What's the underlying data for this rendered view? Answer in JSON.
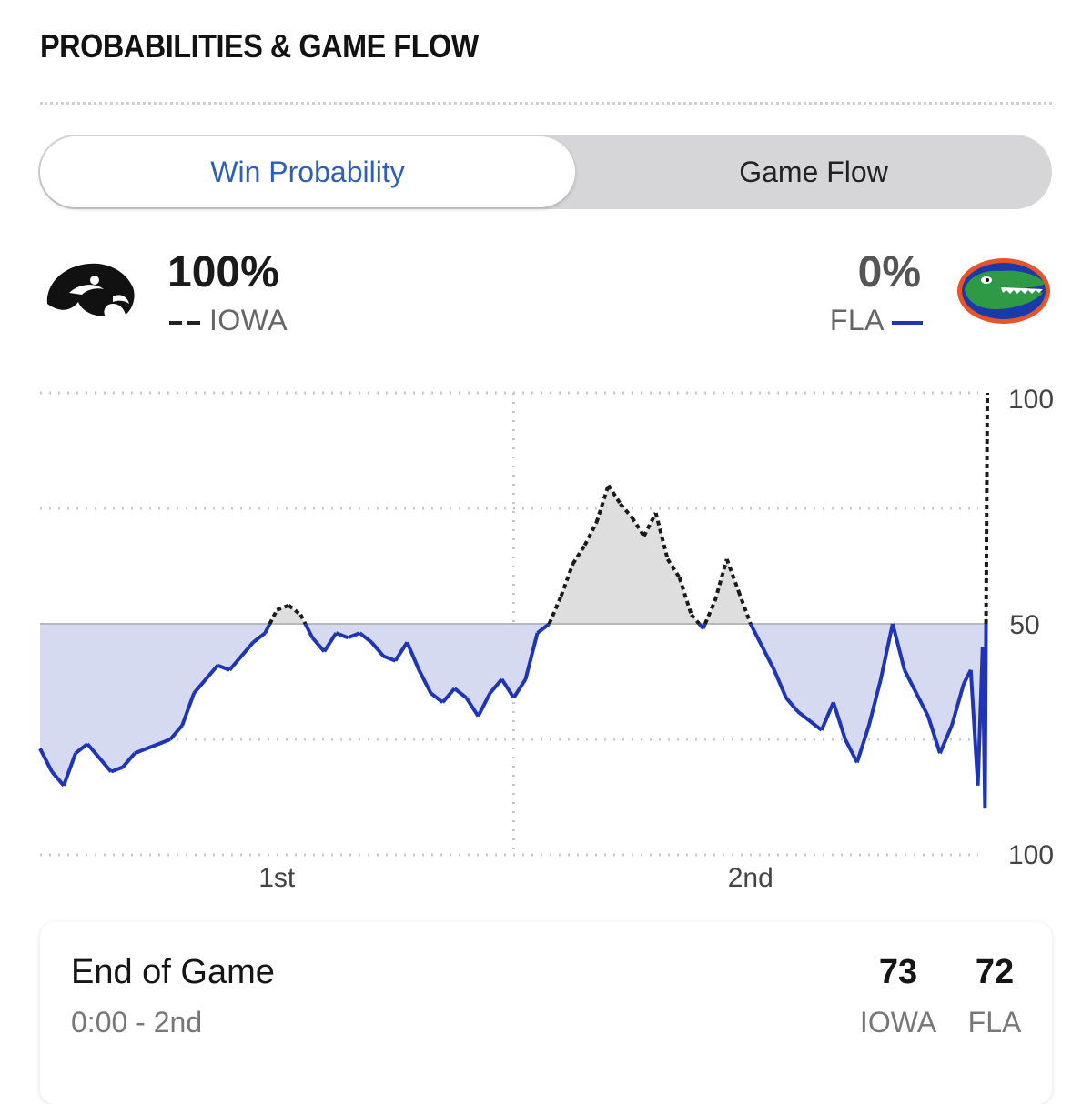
{
  "section": {
    "title": "PROBABILITIES & GAME FLOW"
  },
  "toggle": {
    "active_label": "Win Probability",
    "inactive_label": "Game Flow"
  },
  "teams": {
    "left": {
      "abbr": "IOWA",
      "win_pct": "100%",
      "line_style": "dashed",
      "color": "#222222"
    },
    "right": {
      "abbr": "FLA",
      "win_pct": "0%",
      "line_style": "solid",
      "color": "#1f35b3"
    }
  },
  "chart_data": {
    "type": "line",
    "title": "Win Probability",
    "x_tick_labels": [
      "1st",
      "2nd"
    ],
    "y_tick_labels": {
      "top": "100",
      "middle": "50",
      "bottom": "100"
    },
    "x_range": [
      0,
      40
    ],
    "y_range": [
      0,
      100
    ],
    "y_meaning": "IOWA win probability (%)",
    "series": [
      {
        "name": "IOWA win probability",
        "x": [
          0,
          0.5,
          1,
          1.5,
          2,
          2.5,
          3,
          3.5,
          4,
          4.5,
          5,
          5.5,
          6,
          6.5,
          7,
          7.5,
          8,
          8.5,
          9,
          9.5,
          10,
          10.5,
          11,
          11.5,
          12,
          12.5,
          13,
          13.5,
          14,
          14.5,
          15,
          15.5,
          16,
          16.5,
          17,
          17.5,
          18,
          18.5,
          19,
          19.5,
          20,
          20.5,
          21,
          21.5,
          22,
          22.5,
          23,
          23.5,
          24,
          24.5,
          25,
          25.5,
          26,
          26.5,
          27,
          27.5,
          28,
          28.5,
          29,
          29.5,
          30,
          30.5,
          31,
          31.5,
          32,
          32.5,
          33,
          33.5,
          34,
          34.5,
          35,
          35.5,
          36,
          36.5,
          37,
          37.5,
          38,
          38.5,
          39,
          39.3,
          39.6,
          39.8,
          39.9,
          40
        ],
        "y": [
          23,
          18,
          15,
          22,
          24,
          21,
          18,
          19,
          22,
          23,
          24,
          25,
          28,
          35,
          38,
          41,
          40,
          43,
          46,
          48,
          53,
          54,
          52,
          47,
          44,
          48,
          47,
          48,
          46,
          43,
          42,
          46,
          40,
          35,
          33,
          36,
          34,
          30,
          35,
          38,
          34,
          38,
          48,
          50,
          56,
          63,
          67,
          72,
          80,
          76,
          73,
          69,
          74,
          64,
          60,
          52,
          49,
          55,
          64,
          57,
          50,
          45,
          40,
          34,
          31,
          29,
          27,
          33,
          25,
          20,
          28,
          38,
          50,
          40,
          35,
          30,
          22,
          28,
          37,
          40,
          15,
          45,
          10,
          100
        ]
      }
    ],
    "reference_line_y": 50,
    "period_divider_x": 20
  },
  "footer": {
    "status": "End of Game",
    "time": "0:00 - 2nd",
    "iowa_score": "73",
    "fla_score": "72",
    "iowa_abbr": "IOWA",
    "fla_abbr": "FLA"
  }
}
